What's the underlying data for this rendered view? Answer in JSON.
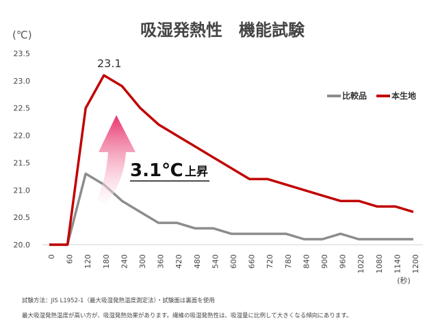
{
  "chart_data": {
    "type": "line",
    "title": "吸湿発熱性　機能試験",
    "ylabel": "(℃)",
    "xlabel": "(秒)",
    "ylim": [
      20.0,
      23.5
    ],
    "yticks": [
      "20.0",
      "20.5",
      "21.0",
      "21.5",
      "22.0",
      "22.5",
      "23.0",
      "23.5"
    ],
    "x": [
      "0",
      "60",
      "120",
      "180",
      "240",
      "300",
      "360",
      "420",
      "480",
      "540",
      "600",
      "660",
      "720",
      "780",
      "840",
      "900",
      "960",
      "1020",
      "1080",
      "1140",
      "1200"
    ],
    "series": [
      {
        "name": "比較品",
        "color": "#8c8c8c",
        "values": [
          20.0,
          20.0,
          21.3,
          21.1,
          20.8,
          20.6,
          20.4,
          20.4,
          20.3,
          20.3,
          20.2,
          20.2,
          20.2,
          20.2,
          20.1,
          20.1,
          20.2,
          20.1,
          20.1,
          20.1,
          20.1
        ]
      },
      {
        "name": "本生地",
        "color": "#c00000",
        "values": [
          20.0,
          20.0,
          22.5,
          23.1,
          22.9,
          22.5,
          22.2,
          22.0,
          21.8,
          21.6,
          21.4,
          21.2,
          21.2,
          21.1,
          21.0,
          20.9,
          20.8,
          20.8,
          20.7,
          20.7,
          20.6
        ]
      }
    ],
    "peak_label": "23.1",
    "legend_position": "top-right",
    "callout": {
      "main": "3.1℃",
      "sub": "上昇",
      "arrow_color": "#e8336b"
    },
    "grid": false
  },
  "notes": {
    "line1": "試験方法：JIS L1952-1（最大吸湿発熱温度測定法）・試験面は裏面を使用",
    "line2": "最大吸湿発熱温度が高い方が、吸湿発熱効果があります。繊維の吸湿発熱性は、吸湿量に比例して大きくなる傾向にあります。"
  }
}
